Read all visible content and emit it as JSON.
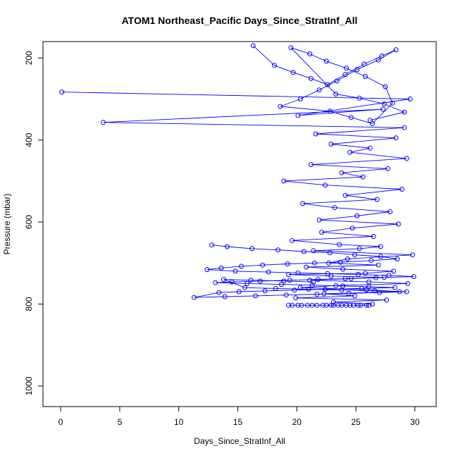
{
  "chart_data": {
    "type": "scatter",
    "connected_points": true,
    "title": "ATOM1 Northeast_Pacific Days_Since_StratInf_All",
    "xlabel": "Days_Since_StratInf_All",
    "ylabel": "Pressure (mbar)",
    "x_ticks": [
      0,
      5,
      10,
      15,
      20,
      25,
      30
    ],
    "y_ticks": [
      200,
      400,
      600,
      800,
      1000
    ],
    "xlim": [
      -1.5,
      31.8
    ],
    "ylim": [
      1050,
      160
    ],
    "y_reversed": true,
    "grid": false,
    "legend": "none",
    "color": "#0000ff",
    "series": [
      {
        "x": [
          0.1,
          29.6,
          20.1,
          27.3,
          3.6,
          29.1,
          21.6,
          28.4,
          22.9,
          26.2,
          24.5,
          29.3,
          21.2,
          27.7,
          23.8,
          25.6,
          18.9,
          22.4,
          28.9,
          24.1,
          26.8,
          20.5,
          23.2,
          27.9,
          25.1,
          21.9,
          28.6,
          24.7,
          22.1,
          26.5,
          19.6,
          23.6,
          27.1,
          25.3,
          21.4,
          29.8,
          24.3,
          22.7,
          26.9,
          20.8,
          23.9,
          28.2,
          25.8,
          19.3,
          22.9,
          27.4,
          24.6,
          21.1,
          26.1,
          29.4,
          23.3,
          20.3,
          25.9,
          28.7,
          22.3,
          24.9,
          19.9,
          27.6,
          23.1,
          26.4
        ],
        "y": [
          283,
          300,
          340,
          325,
          357,
          370,
          385,
          395,
          410,
          420,
          430,
          445,
          460,
          470,
          480,
          490,
          500,
          510,
          520,
          535,
          545,
          555,
          565,
          575,
          585,
          595,
          605,
          615,
          625,
          635,
          645,
          655,
          660,
          665,
          670,
          680,
          690,
          700,
          705,
          710,
          715,
          720,
          725,
          728,
          732,
          735,
          738,
          742,
          746,
          750,
          755,
          760,
          765,
          770,
          775,
          780,
          785,
          790,
          795,
          800
        ]
      },
      {
        "x": [
          12.8,
          14.1,
          16.2,
          18.4,
          20.6,
          22.8,
          24.9,
          27.1,
          28.5,
          26.3,
          23.7,
          21.5,
          19.2,
          17.1,
          15.3,
          13.6,
          12.4,
          14.8,
          17.6,
          20.1,
          22.6,
          25.2,
          27.8,
          29.9,
          26.7,
          24.1,
          21.8,
          19.4,
          16.9,
          14.5,
          13.1,
          15.8,
          18.7,
          21.3,
          23.9,
          26.1,
          28.3,
          25.5,
          22.4,
          19.8,
          17.3,
          15.1,
          13.4,
          11.3,
          13.9,
          16.5,
          19.1,
          21.7,
          24.4,
          27.0,
          29.3,
          26.6,
          23.8,
          21.0,
          18.2,
          15.6,
          13.8,
          16.1,
          18.9,
          21.4
        ],
        "y": [
          656,
          660,
          665,
          668,
          672,
          675,
          680,
          684,
          690,
          694,
          698,
          700,
          702,
          705,
          708,
          712,
          716,
          720,
          722,
          724,
          726,
          728,
          730,
          733,
          736,
          738,
          740,
          742,
          744,
          746,
          748,
          750,
          752,
          754,
          756,
          758,
          760,
          762,
          764,
          766,
          768,
          770,
          772,
          784,
          782,
          780,
          778,
          776,
          774,
          772,
          770,
          768,
          766,
          764,
          762,
          760,
          740,
          742,
          744,
          746
        ]
      },
      {
        "x": [
          19.6,
          20.4,
          21.7,
          22.9,
          24.2,
          25.4,
          26.1,
          25.2,
          23.8,
          22.5,
          21.3,
          20.1,
          19.3,
          20.9,
          22.2,
          23.5,
          24.8,
          25.9,
          24.5,
          23.1
        ],
        "y": [
          803,
          803,
          803,
          803,
          803,
          803,
          803,
          803,
          803,
          803,
          803,
          803,
          803,
          803,
          803,
          803,
          803,
          803,
          803,
          803
        ]
      },
      {
        "x": [
          16.3,
          18.1,
          19.7,
          21.2,
          22.6,
          24.1,
          25.7,
          27.2,
          28.4,
          26.9,
          25.1,
          23.4,
          21.9,
          20.3,
          18.6,
          22.8,
          24.6,
          26.4,
          28.1,
          27.5,
          25.8,
          24.2,
          22.5,
          21.1,
          19.5,
          23.3,
          25.3,
          27.4,
          29.1,
          26.2
        ],
        "y": [
          170,
          218,
          235,
          250,
          265,
          240,
          215,
          195,
          180,
          205,
          228,
          256,
          278,
          300,
          318,
          330,
          345,
          360,
          310,
          270,
          245,
          225,
          208,
          190,
          175,
          288,
          298,
          312,
          332,
          352
        ]
      }
    ]
  }
}
